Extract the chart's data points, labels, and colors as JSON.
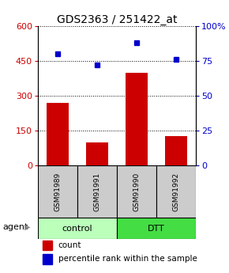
{
  "title": "GDS2363 / 251422_at",
  "samples": [
    "GSM91989",
    "GSM91991",
    "GSM91990",
    "GSM91992"
  ],
  "counts": [
    270,
    100,
    400,
    125
  ],
  "percentiles": [
    80,
    72,
    88,
    76
  ],
  "ylim_left": [
    0,
    600
  ],
  "ylim_right": [
    0,
    100
  ],
  "yticks_left": [
    0,
    150,
    300,
    450,
    600
  ],
  "yticks_right": [
    0,
    25,
    50,
    75,
    100
  ],
  "ytick_labels_right": [
    "0",
    "25",
    "50",
    "75",
    "100%"
  ],
  "bar_color": "#cc0000",
  "dot_color": "#0000cc",
  "groups": [
    {
      "label": "control",
      "indices": [
        0,
        1
      ],
      "color": "#bbffbb"
    },
    {
      "label": "DTT",
      "indices": [
        2,
        3
      ],
      "color": "#44dd44"
    }
  ],
  "agent_label": "agent",
  "legend_count_label": "count",
  "legend_percentile_label": "percentile rank within the sample",
  "bar_width": 0.55,
  "sample_box_color": "#cccccc",
  "title_fontsize": 10,
  "tick_fontsize": 8
}
